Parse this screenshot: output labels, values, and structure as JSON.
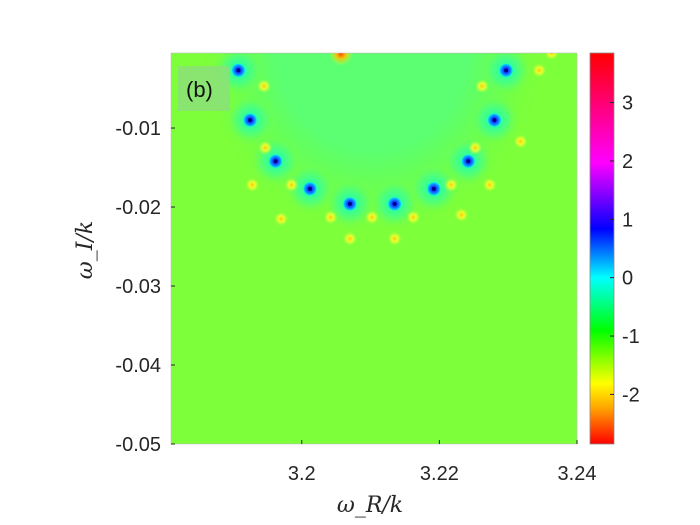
{
  "chart_data": {
    "type": "heatmap",
    "panel_label": "(b)",
    "xlabel": "ω_R/k",
    "ylabel": "ω_I/k",
    "xlim": [
      3.181,
      3.24
    ],
    "ylim": [
      -0.05,
      -0.0005
    ],
    "x_ticks": [
      {
        "value": 3.2,
        "label": "3.2"
      },
      {
        "value": 3.22,
        "label": "3.22"
      },
      {
        "value": 3.24,
        "label": "3.24"
      }
    ],
    "y_ticks": [
      {
        "value": -0.01,
        "label": "-0.01"
      },
      {
        "value": -0.02,
        "label": "-0.02"
      },
      {
        "value": -0.03,
        "label": "-0.03"
      },
      {
        "value": -0.04,
        "label": "-0.04"
      },
      {
        "value": -0.05,
        "label": "-0.05"
      }
    ],
    "colorbar": {
      "range": [
        -2.85,
        3.85
      ],
      "colormap": "hsv",
      "ticks": [
        {
          "value": 3,
          "label": "3"
        },
        {
          "value": 2,
          "label": "2"
        },
        {
          "value": 1,
          "label": "1"
        },
        {
          "value": 0,
          "label": "0"
        },
        {
          "value": -1,
          "label": "-1"
        },
        {
          "value": -2,
          "label": "-2"
        }
      ]
    },
    "background_value": -0.85,
    "minima": [
      {
        "x": 3.1908,
        "y": -0.0027
      },
      {
        "x": 3.1925,
        "y": -0.009
      },
      {
        "x": 3.1962,
        "y": -0.0142
      },
      {
        "x": 3.2012,
        "y": -0.0177
      },
      {
        "x": 3.207,
        "y": -0.0196
      },
      {
        "x": 3.2135,
        "y": -0.0196
      },
      {
        "x": 3.2192,
        "y": -0.0177
      },
      {
        "x": 3.2242,
        "y": -0.0142
      },
      {
        "x": 3.228,
        "y": -0.009
      },
      {
        "x": 3.2297,
        "y": -0.0027
      }
    ],
    "maxima": [
      {
        "x": 3.2057,
        "y": -0.0006
      },
      {
        "x": 3.1945,
        "y": -0.0047
      },
      {
        "x": 3.1947,
        "y": -0.0125
      },
      {
        "x": 3.1928,
        "y": -0.0172
      },
      {
        "x": 3.1985,
        "y": -0.0172
      },
      {
        "x": 3.197,
        "y": -0.0215
      },
      {
        "x": 3.2042,
        "y": -0.0213
      },
      {
        "x": 3.207,
        "y": -0.024
      },
      {
        "x": 3.2102,
        "y": -0.0213
      },
      {
        "x": 3.2135,
        "y": -0.024
      },
      {
        "x": 3.2162,
        "y": -0.0213
      },
      {
        "x": 3.2217,
        "y": -0.0172
      },
      {
        "x": 3.2232,
        "y": -0.021
      },
      {
        "x": 3.2273,
        "y": -0.0172
      },
      {
        "x": 3.2252,
        "y": -0.0125
      },
      {
        "x": 3.2318,
        "y": -0.0117
      },
      {
        "x": 3.2262,
        "y": -0.0047
      },
      {
        "x": 3.2345,
        "y": -0.0027
      },
      {
        "x": 3.2363,
        "y": -0.0005
      }
    ]
  }
}
